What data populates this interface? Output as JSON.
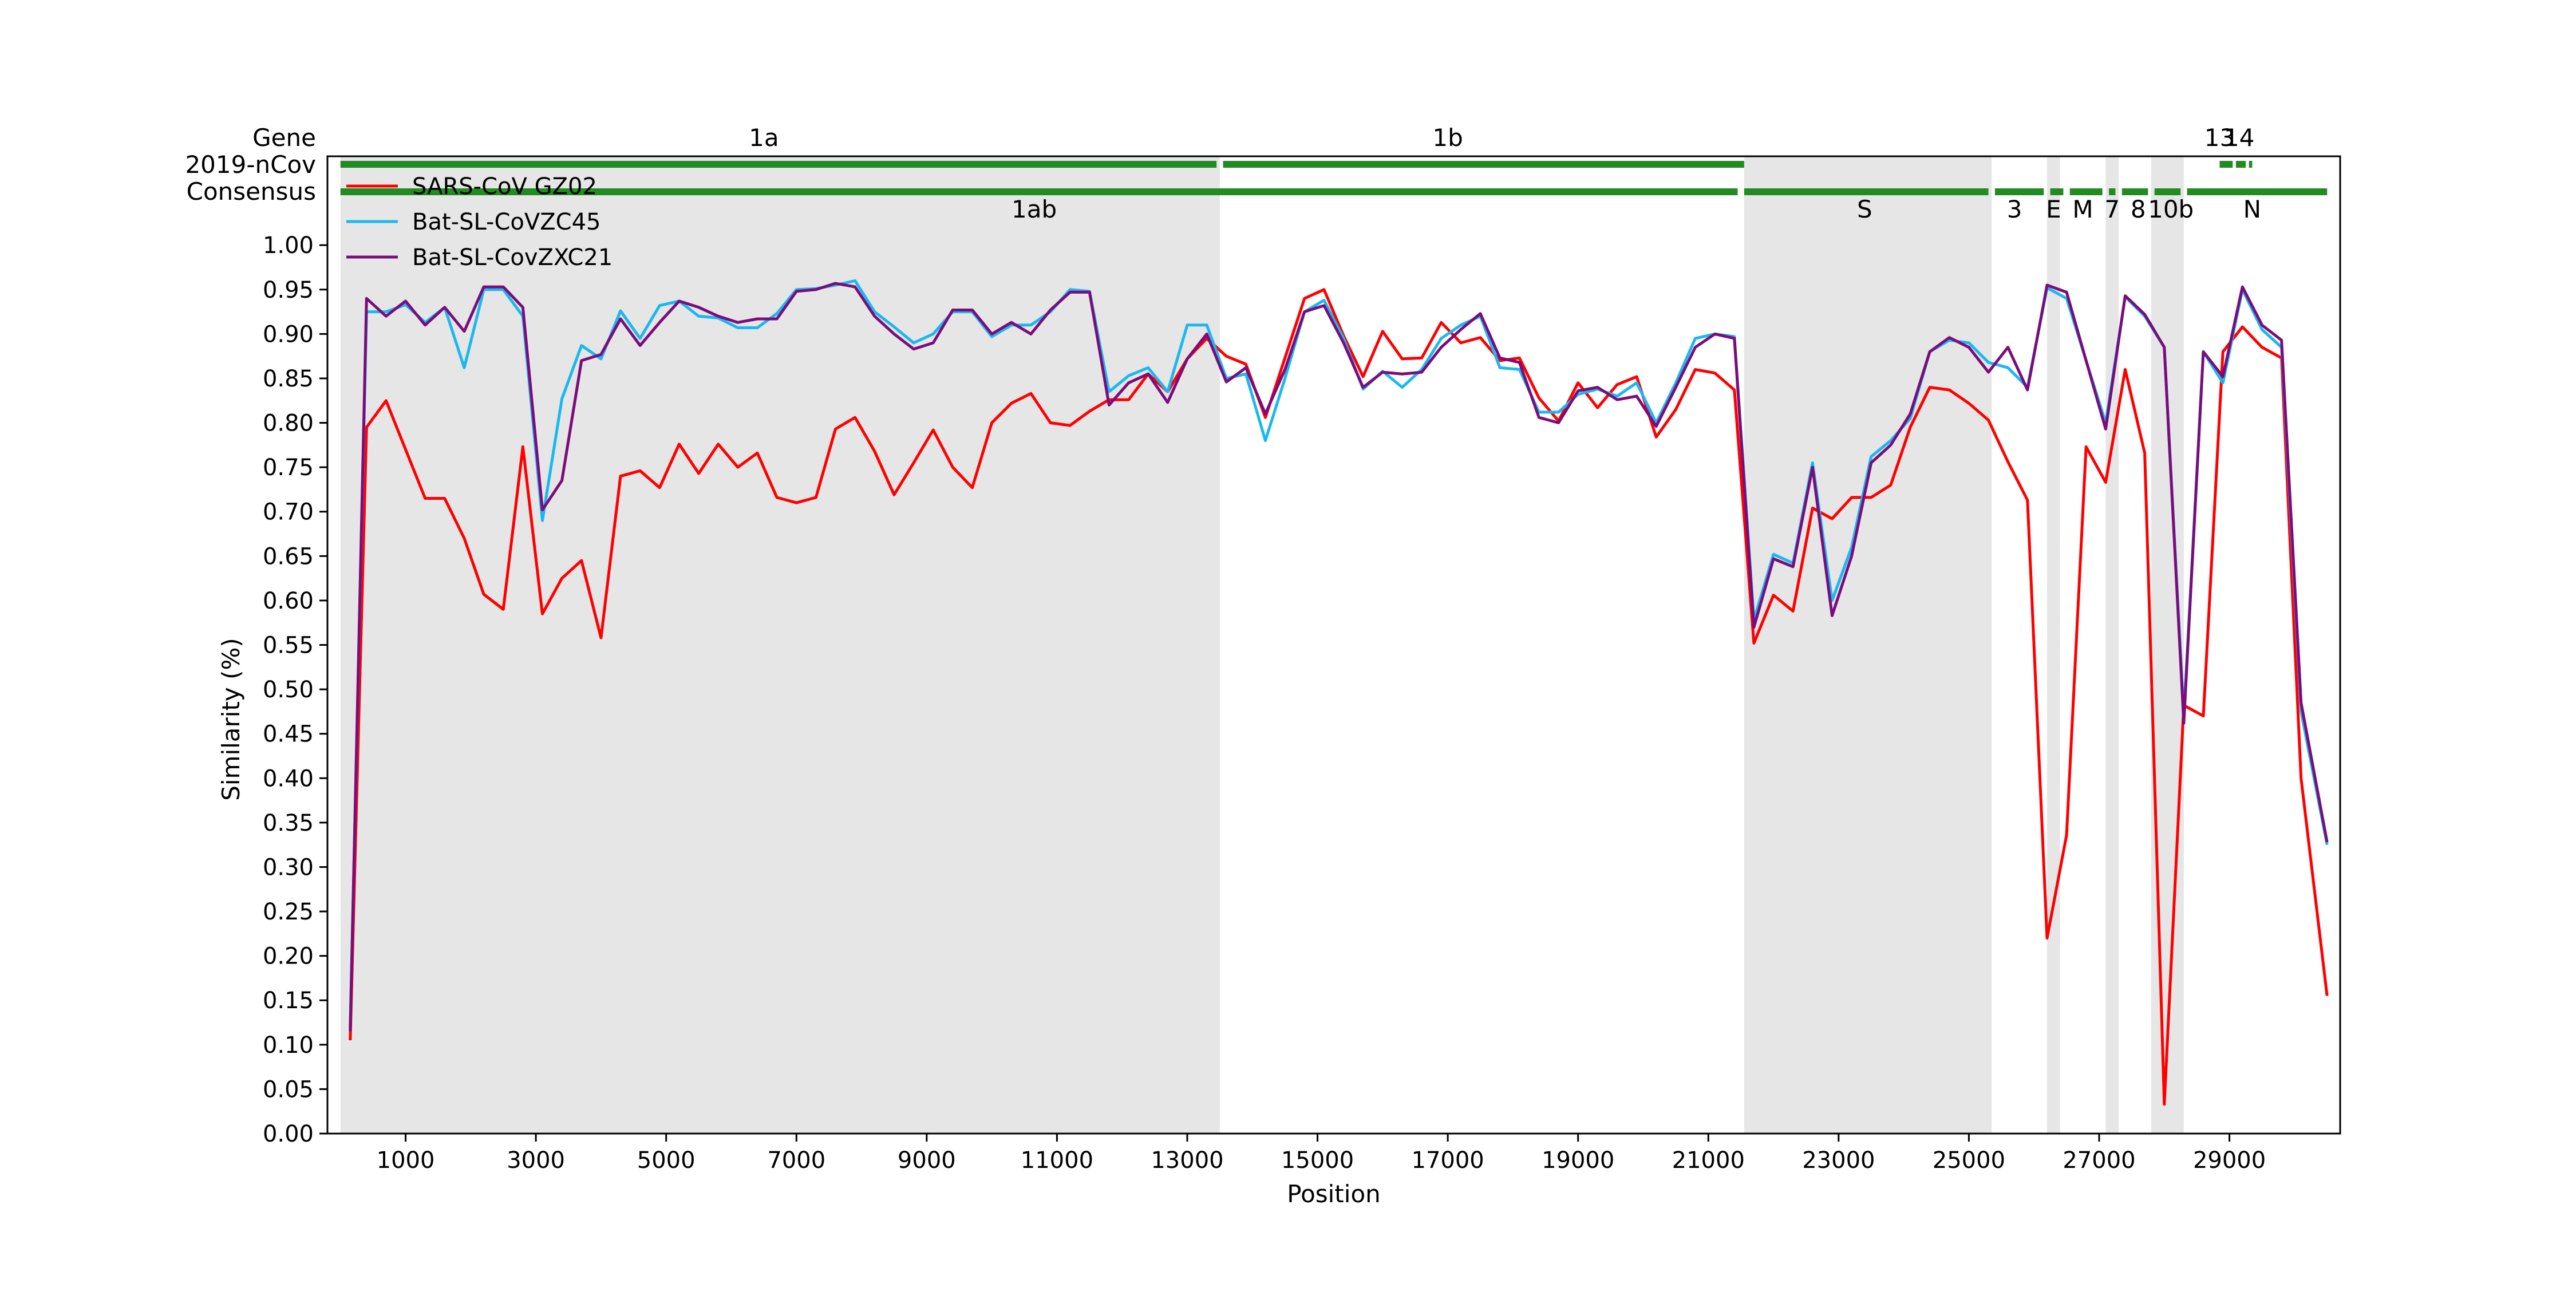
{
  "chart_data": {
    "type": "line",
    "xlabel": "Position",
    "ylabel": "Similarity (%)",
    "xlim": [
      -200,
      30700
    ],
    "ylim": [
      0.0,
      1.1
    ],
    "x_ticks": [
      1000,
      3000,
      5000,
      7000,
      9000,
      11000,
      13000,
      15000,
      17000,
      19000,
      21000,
      23000,
      25000,
      27000,
      29000
    ],
    "y_ticks": [
      0.0,
      0.05,
      0.1,
      0.15,
      0.2,
      0.25,
      0.3,
      0.35,
      0.4,
      0.45,
      0.5,
      0.55,
      0.6,
      0.65,
      0.7,
      0.75,
      0.8,
      0.85,
      0.9,
      0.95,
      1.0
    ],
    "grid": false,
    "legend_position": "top-left",
    "track_labels": [
      "Gene",
      "2019-nCov",
      "Consensus"
    ],
    "gene_labels": [
      {
        "text": "1a",
        "x": 6500,
        "row": "top"
      },
      {
        "text": "1b",
        "x": 17000,
        "row": "top"
      },
      {
        "text": "13",
        "x": 28850,
        "row": "top"
      },
      {
        "text": "14",
        "x": 29150,
        "row": "top"
      },
      {
        "text": "1ab",
        "x": 10650,
        "row": "bottom"
      },
      {
        "text": "S",
        "x": 23400,
        "row": "bottom"
      },
      {
        "text": "3",
        "x": 25700,
        "row": "bottom"
      },
      {
        "text": "E",
        "x": 26300,
        "row": "bottom"
      },
      {
        "text": "M",
        "x": 26750,
        "row": "bottom"
      },
      {
        "text": "7",
        "x": 27200,
        "row": "bottom"
      },
      {
        "text": "8",
        "x": 27600,
        "row": "bottom"
      },
      {
        "text": "10b",
        "x": 28100,
        "row": "bottom"
      },
      {
        "text": "N",
        "x": 29350,
        "row": "bottom"
      }
    ],
    "gene_tracks": {
      "nCov": [
        [
          0,
          13450
        ],
        [
          13550,
          21550
        ],
        [
          28850,
          29050
        ],
        [
          29100,
          29250
        ],
        [
          29300,
          29350
        ]
      ],
      "consensus": [
        [
          0,
          21450
        ],
        [
          21550,
          25300
        ],
        [
          25400,
          26150
        ],
        [
          26250,
          26450
        ],
        [
          26550,
          27050
        ],
        [
          27150,
          27250
        ],
        [
          27350,
          27750
        ],
        [
          27850,
          28250
        ],
        [
          28350,
          30500
        ]
      ]
    },
    "shaded_regions": [
      [
        0,
        13500
      ],
      [
        21550,
        25350
      ],
      [
        26200,
        26400
      ],
      [
        27100,
        27300
      ],
      [
        27800,
        28300
      ]
    ],
    "x": [
      150,
      400,
      700,
      1000,
      1300,
      1600,
      1900,
      2200,
      2500,
      2800,
      3100,
      3400,
      3700,
      4000,
      4300,
      4600,
      4900,
      5200,
      5500,
      5800,
      6100,
      6400,
      6700,
      7000,
      7300,
      7600,
      7900,
      8200,
      8500,
      8800,
      9100,
      9400,
      9700,
      10000,
      10300,
      10600,
      10900,
      11200,
      11500,
      11800,
      12100,
      12400,
      12700,
      13000,
      13300,
      13600,
      13900,
      14200,
      14500,
      14800,
      15100,
      15400,
      15700,
      16000,
      16300,
      16600,
      16900,
      17200,
      17500,
      17800,
      18100,
      18400,
      18700,
      19000,
      19300,
      19600,
      19900,
      20200,
      20500,
      20800,
      21100,
      21400,
      21700,
      22000,
      22300,
      22600,
      22900,
      23200,
      23500,
      23800,
      24100,
      24400,
      24700,
      25000,
      25300,
      25600,
      25900,
      26200,
      26500,
      26800,
      27100,
      27400,
      27700,
      28000,
      28300,
      28600,
      28900,
      29200,
      29500,
      29800,
      30100,
      30500
    ],
    "series": [
      {
        "name": "SARS-CoV GZ02",
        "color": "#ff0000",
        "values": [
          0.105,
          0.795,
          0.825,
          0.77,
          0.715,
          0.715,
          0.67,
          0.607,
          0.59,
          0.773,
          0.585,
          0.625,
          0.645,
          0.558,
          0.74,
          0.746,
          0.727,
          0.776,
          0.743,
          0.776,
          0.75,
          0.766,
          0.716,
          0.71,
          0.716,
          0.793,
          0.806,
          0.768,
          0.719,
          0.755,
          0.792,
          0.75,
          0.727,
          0.8,
          0.822,
          0.833,
          0.8,
          0.797,
          0.813,
          0.826,
          0.826,
          0.855,
          0.835,
          0.872,
          0.895,
          0.875,
          0.866,
          0.806,
          0.873,
          0.94,
          0.95,
          0.898,
          0.852,
          0.903,
          0.872,
          0.873,
          0.913,
          0.89,
          0.896,
          0.87,
          0.873,
          0.828,
          0.802,
          0.845,
          0.817,
          0.843,
          0.852,
          0.784,
          0.815,
          0.86,
          0.856,
          0.837,
          0.552,
          0.606,
          0.588,
          0.704,
          0.692,
          0.716,
          0.716,
          0.73,
          0.795,
          0.84,
          0.837,
          0.822,
          0.803,
          0.756,
          0.713,
          0.22,
          0.336,
          0.773,
          0.733,
          0.86,
          0.766,
          0.033,
          0.482,
          0.47,
          0.88,
          0.908,
          0.885,
          0.873,
          0.4,
          0.155
        ]
      },
      {
        "name": "Bat-SL-CoVZC45",
        "color": "#1ab8f0",
        "values": [
          0.12,
          0.925,
          0.925,
          0.933,
          0.913,
          0.93,
          0.862,
          0.95,
          0.95,
          0.92,
          0.69,
          0.827,
          0.887,
          0.872,
          0.926,
          0.895,
          0.932,
          0.937,
          0.92,
          0.918,
          0.907,
          0.907,
          0.923,
          0.95,
          0.951,
          0.955,
          0.96,
          0.925,
          0.908,
          0.89,
          0.9,
          0.925,
          0.925,
          0.897,
          0.91,
          0.91,
          0.925,
          0.95,
          0.948,
          0.835,
          0.853,
          0.862,
          0.835,
          0.91,
          0.91,
          0.85,
          0.855,
          0.78,
          0.85,
          0.925,
          0.938,
          0.895,
          0.838,
          0.858,
          0.84,
          0.86,
          0.895,
          0.91,
          0.92,
          0.862,
          0.86,
          0.812,
          0.812,
          0.832,
          0.838,
          0.83,
          0.845,
          0.8,
          0.845,
          0.895,
          0.9,
          0.897,
          0.578,
          0.652,
          0.642,
          0.755,
          0.6,
          0.66,
          0.762,
          0.78,
          0.805,
          0.88,
          0.893,
          0.89,
          0.868,
          0.862,
          0.84,
          0.952,
          0.94,
          0.87,
          0.8,
          0.942,
          0.92,
          0.885,
          0.47,
          0.88,
          0.845,
          0.95,
          0.905,
          0.885,
          0.475,
          0.325
        ]
      },
      {
        "name": "Bat-SL-CovZXC21",
        "color": "#7b0c7b",
        "values": [
          0.115,
          0.94,
          0.92,
          0.937,
          0.91,
          0.93,
          0.903,
          0.953,
          0.953,
          0.93,
          0.702,
          0.735,
          0.87,
          0.877,
          0.917,
          0.887,
          0.913,
          0.937,
          0.93,
          0.92,
          0.913,
          0.917,
          0.917,
          0.948,
          0.95,
          0.957,
          0.953,
          0.92,
          0.9,
          0.883,
          0.89,
          0.927,
          0.927,
          0.9,
          0.913,
          0.9,
          0.927,
          0.947,
          0.947,
          0.82,
          0.845,
          0.855,
          0.823,
          0.872,
          0.9,
          0.846,
          0.862,
          0.81,
          0.86,
          0.925,
          0.932,
          0.89,
          0.84,
          0.857,
          0.855,
          0.857,
          0.885,
          0.905,
          0.923,
          0.873,
          0.868,
          0.806,
          0.8,
          0.836,
          0.84,
          0.826,
          0.83,
          0.796,
          0.84,
          0.885,
          0.9,
          0.895,
          0.57,
          0.647,
          0.638,
          0.75,
          0.583,
          0.65,
          0.755,
          0.775,
          0.81,
          0.88,
          0.896,
          0.885,
          0.857,
          0.885,
          0.837,
          0.955,
          0.947,
          0.87,
          0.793,
          0.943,
          0.922,
          0.885,
          0.462,
          0.88,
          0.852,
          0.953,
          0.91,
          0.893,
          0.485,
          0.328
        ]
      }
    ]
  }
}
